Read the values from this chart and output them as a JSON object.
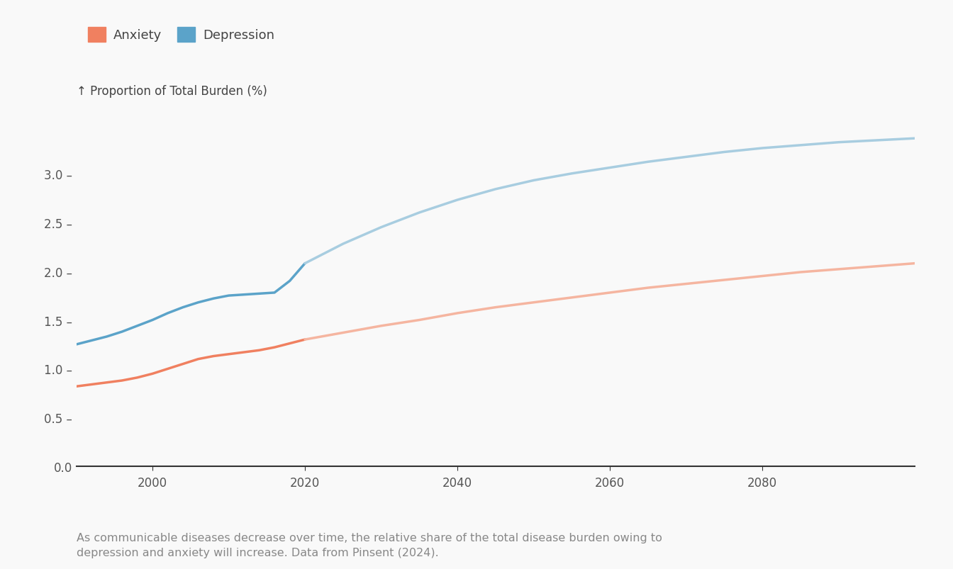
{
  "ylabel": "↑ Proportion of Total Burden (%)",
  "caption": "As communicable diseases decrease over time, the relative share of the total disease burden owing to\ndepression and anxiety will increase. Data from Pinsent (2024).",
  "anxiety_color_solid": "#F08060",
  "anxiety_color_light": "#F5B5A0",
  "depression_color_solid": "#5BA3C9",
  "depression_color_light": "#A8CDE0",
  "background_color": "#f9f9f9",
  "xmin": 1990,
  "xmax": 2100,
  "ymin": 0.0,
  "ymax": 3.5,
  "anxiety_data": {
    "years_solid": [
      1990,
      1992,
      1994,
      1996,
      1998,
      2000,
      2002,
      2004,
      2006,
      2008,
      2010,
      2012,
      2014,
      2016,
      2018,
      2020
    ],
    "values_solid": [
      0.82,
      0.84,
      0.86,
      0.88,
      0.91,
      0.95,
      1.0,
      1.05,
      1.1,
      1.13,
      1.15,
      1.17,
      1.19,
      1.22,
      1.26,
      1.3
    ],
    "years_light": [
      2020,
      2025,
      2030,
      2035,
      2040,
      2045,
      2050,
      2055,
      2060,
      2065,
      2070,
      2075,
      2080,
      2085,
      2090,
      2095,
      2100
    ],
    "values_light": [
      1.3,
      1.37,
      1.44,
      1.5,
      1.57,
      1.63,
      1.68,
      1.73,
      1.78,
      1.83,
      1.87,
      1.91,
      1.95,
      1.99,
      2.02,
      2.05,
      2.08
    ]
  },
  "depression_data": {
    "years_solid": [
      1990,
      1992,
      1994,
      1996,
      1998,
      2000,
      2002,
      2004,
      2006,
      2008,
      2010,
      2012,
      2014,
      2016,
      2018,
      2020
    ],
    "values_solid": [
      1.25,
      1.29,
      1.33,
      1.38,
      1.44,
      1.5,
      1.57,
      1.63,
      1.68,
      1.72,
      1.75,
      1.76,
      1.77,
      1.78,
      1.9,
      2.08
    ],
    "years_light": [
      2020,
      2025,
      2030,
      2035,
      2040,
      2045,
      2050,
      2055,
      2060,
      2065,
      2070,
      2075,
      2080,
      2085,
      2090,
      2095,
      2100
    ],
    "values_light": [
      2.08,
      2.28,
      2.45,
      2.6,
      2.73,
      2.84,
      2.93,
      3.0,
      3.06,
      3.12,
      3.17,
      3.22,
      3.26,
      3.29,
      3.32,
      3.34,
      3.36
    ]
  },
  "yticks": [
    0.0,
    0.5,
    1.0,
    1.5,
    2.0,
    2.5,
    3.0
  ],
  "ytick_labels": [
    "0.0",
    "0.5 –",
    "1.0 –",
    "1.5 –",
    "2.0 –",
    "2.5 –",
    "3.0 –"
  ],
  "xticks": [
    2000,
    2020,
    2040,
    2060,
    2080
  ],
  "legend_labels": [
    "Anxiety",
    "Depression"
  ],
  "legend_colors_solid": [
    "#F08060",
    "#5BA3C9"
  ],
  "tick_color": "#555555",
  "caption_color": "#888888",
  "label_color": "#444444"
}
